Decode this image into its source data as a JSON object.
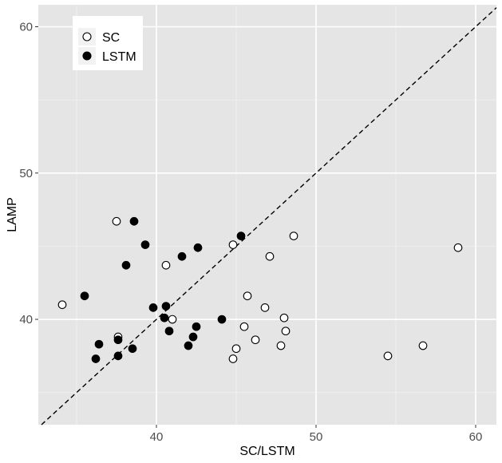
{
  "chart_data": {
    "type": "scatter",
    "xlabel": "SC/LSTM",
    "ylabel": "LAMP",
    "xlim": [
      32.6,
      61.3
    ],
    "ylim": [
      32.8,
      61.5
    ],
    "x_ticks": [
      40,
      50,
      60
    ],
    "y_ticks": [
      40,
      50,
      60
    ],
    "x_tick_labels": [
      "40",
      "50",
      "60"
    ],
    "y_tick_labels": [
      "40",
      "50",
      "60"
    ],
    "grid": true,
    "reference_line": {
      "type": "diagonal",
      "style": "dashed",
      "slope": 1,
      "intercept": 0
    },
    "legend": {
      "position": "top-left"
    },
    "series": [
      {
        "name": "SC",
        "marker": "open-circle",
        "color": "#000000",
        "points": [
          {
            "x": 34.1,
            "y": 41.0
          },
          {
            "x": 37.5,
            "y": 46.7
          },
          {
            "x": 37.6,
            "y": 38.8
          },
          {
            "x": 40.6,
            "y": 43.7
          },
          {
            "x": 41.0,
            "y": 40.0
          },
          {
            "x": 44.8,
            "y": 45.1
          },
          {
            "x": 45.0,
            "y": 38.0
          },
          {
            "x": 44.8,
            "y": 37.3
          },
          {
            "x": 45.5,
            "y": 39.5
          },
          {
            "x": 45.7,
            "y": 41.6
          },
          {
            "x": 46.2,
            "y": 38.6
          },
          {
            "x": 46.8,
            "y": 40.8
          },
          {
            "x": 47.1,
            "y": 44.3
          },
          {
            "x": 47.8,
            "y": 38.2
          },
          {
            "x": 48.0,
            "y": 40.1
          },
          {
            "x": 48.1,
            "y": 39.2
          },
          {
            "x": 48.6,
            "y": 45.7
          },
          {
            "x": 54.5,
            "y": 37.5
          },
          {
            "x": 56.7,
            "y": 38.2
          },
          {
            "x": 58.9,
            "y": 44.9
          }
        ]
      },
      {
        "name": "LSTM",
        "marker": "filled-circle",
        "color": "#000000",
        "points": [
          {
            "x": 35.5,
            "y": 41.6
          },
          {
            "x": 36.2,
            "y": 37.3
          },
          {
            "x": 36.4,
            "y": 38.3
          },
          {
            "x": 37.6,
            "y": 37.5
          },
          {
            "x": 37.6,
            "y": 38.6
          },
          {
            "x": 38.1,
            "y": 43.7
          },
          {
            "x": 38.5,
            "y": 38.0
          },
          {
            "x": 38.6,
            "y": 46.7
          },
          {
            "x": 39.3,
            "y": 45.1
          },
          {
            "x": 39.8,
            "y": 40.8
          },
          {
            "x": 40.5,
            "y": 40.1
          },
          {
            "x": 40.6,
            "y": 40.9
          },
          {
            "x": 40.8,
            "y": 39.2
          },
          {
            "x": 41.6,
            "y": 44.3
          },
          {
            "x": 42.0,
            "y": 38.2
          },
          {
            "x": 42.3,
            "y": 38.8
          },
          {
            "x": 42.5,
            "y": 39.5
          },
          {
            "x": 42.6,
            "y": 44.9
          },
          {
            "x": 44.1,
            "y": 40.0
          },
          {
            "x": 45.3,
            "y": 45.7
          }
        ]
      }
    ]
  }
}
